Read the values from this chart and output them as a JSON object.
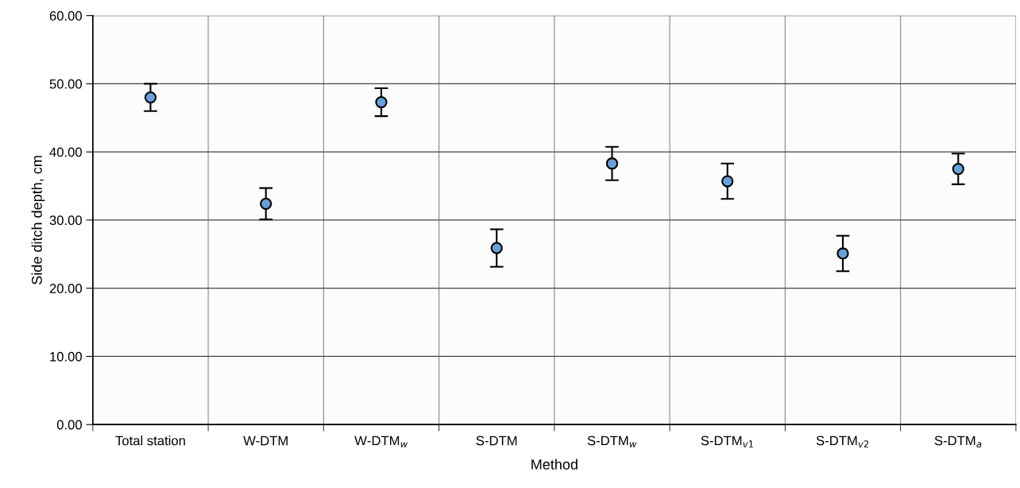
{
  "chart_data": {
    "type": "scatter",
    "xlabel": "Method",
    "ylabel": "Side ditch depth, cm",
    "categories": [
      "Total station",
      "W-DTM",
      "W-DTM$_{w}$",
      "S-DTM",
      "S-DTM$_{w}$",
      "S-DTM$_{v1}$",
      "S-DTM$_{v2}$",
      "S-DTM$_{a}$"
    ],
    "values": [
      48.0,
      32.4,
      47.3,
      25.9,
      38.3,
      35.7,
      25.1,
      37.5
    ],
    "errors": [
      2.0,
      2.3,
      2.05,
      2.75,
      2.45,
      2.6,
      2.6,
      2.25
    ],
    "color": "#6a9fd8",
    "marker": "circle",
    "grid": true,
    "ylim": [
      0,
      60
    ],
    "yticks": [
      {
        "value": 0,
        "label": "0.00"
      },
      {
        "value": 10,
        "label": "10.00"
      },
      {
        "value": 20,
        "label": "20.00"
      },
      {
        "value": 30,
        "label": "30.00"
      },
      {
        "value": 40,
        "label": "40.00"
      },
      {
        "value": 50,
        "label": "50.00"
      },
      {
        "value": 60,
        "label": "60.00"
      }
    ]
  }
}
